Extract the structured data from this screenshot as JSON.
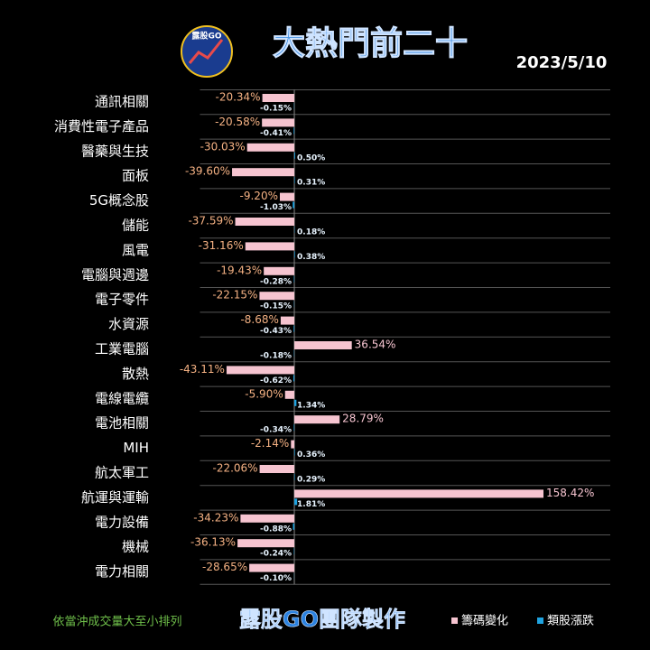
{
  "chart_data": {
    "type": "bar",
    "orientation": "horizontal",
    "title": "大熱門前二十",
    "date": "2023/5/10",
    "logo_text": "露股GO",
    "note": "依當沖成交量大至小排列",
    "credit": "露股GO團隊製作",
    "categories": [
      "通訊相關",
      "消費性電子產品",
      "醫藥與生技",
      "面板",
      "5G概念股",
      "儲能",
      "風電",
      "電腦與週邊",
      "電子零件",
      "水資源",
      "工業電腦",
      "散熱",
      "電線電纜",
      "電池相關",
      "MIH",
      "航太軍工",
      "航運與運輸",
      "電力設備",
      "機械",
      "電力相關"
    ],
    "xlim": [
      -60,
      180
    ],
    "series": [
      {
        "name": "籌碼變化",
        "color": "#f6c4d0",
        "values": [
          -20.34,
          -20.58,
          -30.03,
          -39.6,
          -9.2,
          -37.59,
          -31.16,
          -19.43,
          -22.15,
          -8.68,
          36.54,
          -43.11,
          -5.9,
          28.79,
          -2.14,
          -22.06,
          158.42,
          -34.23,
          -36.13,
          -28.65
        ],
        "value_labels": [
          "-20.34%",
          "-20.58%",
          "-30.03%",
          "-39.60%",
          "-9.20%",
          "-37.59%",
          "-31.16%",
          "-19.43%",
          "-22.15%",
          "-8.68%",
          "36.54%",
          "-43.11%",
          "-5.90%",
          "28.79%",
          "-2.14%",
          "-22.06%",
          "158.42%",
          "-34.23%",
          "-36.13%",
          "-28.65%"
        ]
      },
      {
        "name": "類股漲跌",
        "color": "#1fa3e0",
        "values": [
          -0.15,
          -0.41,
          0.5,
          0.31,
          -1.03,
          0.18,
          0.38,
          -0.28,
          -0.15,
          -0.43,
          -0.18,
          -0.62,
          1.34,
          -0.34,
          0.36,
          0.29,
          1.81,
          -0.88,
          -0.24,
          -0.1
        ],
        "value_labels": [
          "-0.15%",
          "-0.41%",
          "0.50%",
          "0.31%",
          "-1.03%",
          "0.18%",
          "0.38%",
          "-0.28%",
          "-0.15%",
          "-0.43%",
          "-0.18%",
          "-0.62%",
          "1.34%",
          "-0.34%",
          "0.36%",
          "0.29%",
          "1.81%",
          "-0.88%",
          "-0.24%",
          "-0.10%"
        ]
      }
    ]
  }
}
